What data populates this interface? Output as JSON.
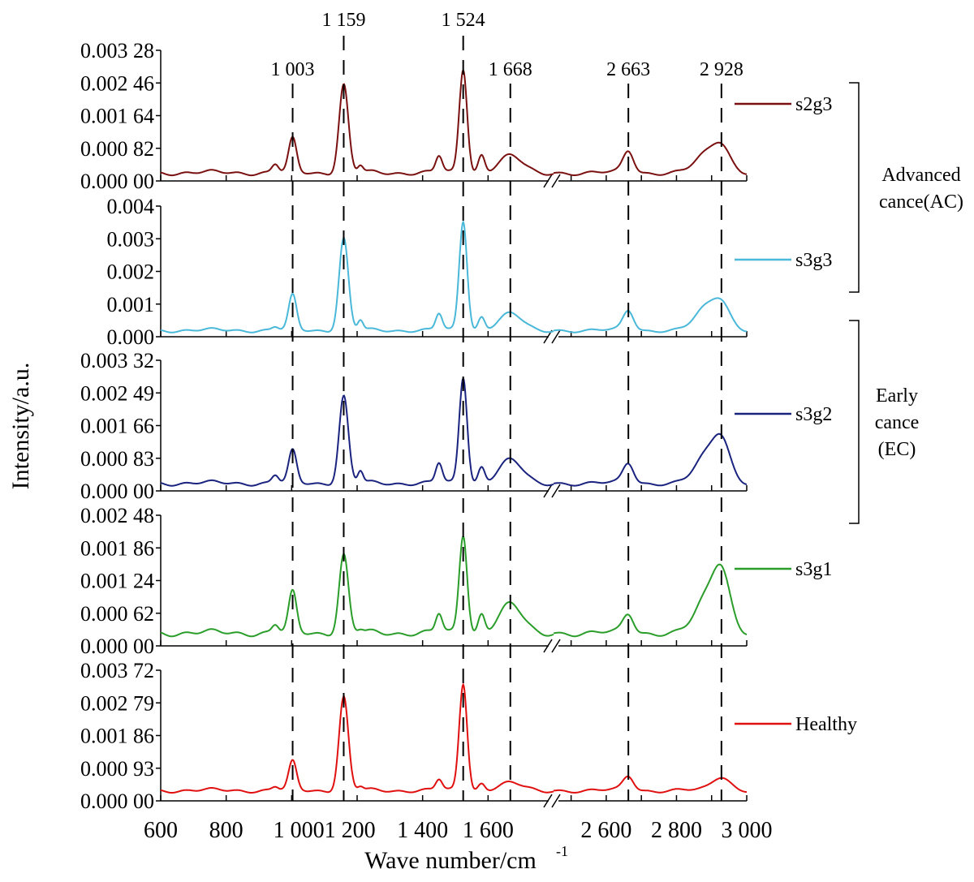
{
  "chart_data": {
    "type": "line",
    "xlabel": "Wave number/cm",
    "xlabel_superscript": "-1",
    "ylabel": "Intensity/a.u.",
    "x_axis": {
      "segments": [
        {
          "range": [
            600,
            1800
          ],
          "ticks": [
            600,
            800,
            1000,
            1200,
            1400,
            1600
          ]
        },
        {
          "range": [
            2450,
            3000
          ],
          "ticks": [
            2500,
            2600,
            2700,
            2800,
            2900,
            3000
          ]
        }
      ],
      "tick_labels": [
        {
          "text": "600",
          "value": 600
        },
        {
          "text": "800",
          "value": 800
        },
        {
          "text": "1 0001 200",
          "value": 1100
        },
        {
          "text": "1 400",
          "value": 1400
        },
        {
          "text": "1 600",
          "value": 1600
        },
        {
          "text": "2 600",
          "value": 2600
        },
        {
          "text": "2 800",
          "value": 2800
        },
        {
          "text": "3 000",
          "value": 3000
        }
      ],
      "break": true
    },
    "reference_lines": [
      {
        "value": 1003,
        "label": "1 003"
      },
      {
        "value": 1159,
        "label": "1 159"
      },
      {
        "value": 1524,
        "label": "1 524"
      },
      {
        "value": 1668,
        "label": "1 668"
      },
      {
        "value": 2663,
        "label": "2 663"
      },
      {
        "value": 2928,
        "label": "2 928"
      }
    ],
    "panels": [
      {
        "name": "s2g3",
        "color": "#7a1010",
        "ylim": [
          0,
          0.00328
        ],
        "yticks": [
          "0.000 00",
          "0.000 82",
          "0.001 64",
          "0.002 46",
          "0.003 28"
        ],
        "base": 0.00021,
        "peaks": [
          [
            1003,
            0.00104,
            12
          ],
          [
            1159,
            0.00241,
            14
          ],
          [
            1524,
            0.00282,
            12
          ],
          [
            1668,
            0.00062,
            35
          ],
          [
            1450,
            0.00062,
            10
          ],
          [
            1580,
            0.00065,
            10
          ],
          [
            950,
            0.00042,
            10
          ],
          [
            1210,
            0.00038,
            8
          ],
          [
            2663,
            0.00075,
            15
          ],
          [
            2928,
            0.00088,
            25
          ],
          [
            2880,
            0.0006,
            30
          ]
        ]
      },
      {
        "name": "s3g3",
        "color": "#4ab8d8",
        "ylim": [
          0,
          0.004
        ],
        "yticks": [
          "0.000",
          "0.001",
          "0.002",
          "0.003",
          "0.004"
        ],
        "base": 0.0002,
        "peaks": [
          [
            1003,
            0.00125,
            12
          ],
          [
            1159,
            0.003,
            14
          ],
          [
            1524,
            0.00355,
            12
          ],
          [
            1668,
            0.0007,
            35
          ],
          [
            1450,
            0.0007,
            10
          ],
          [
            1580,
            0.0006,
            10
          ],
          [
            950,
            0.0003,
            10
          ],
          [
            1210,
            0.0005,
            8
          ],
          [
            2663,
            0.0008,
            15
          ],
          [
            2928,
            0.00102,
            25
          ],
          [
            2880,
            0.0008,
            30
          ]
        ]
      },
      {
        "name": "s3g2",
        "color": "#1a237e",
        "ylim": [
          0,
          0.00332
        ],
        "yticks": [
          "0.000 00",
          "0.000 83",
          "0.001 66",
          "0.002 49",
          "0.003 32"
        ],
        "base": 0.0002,
        "peaks": [
          [
            1003,
            0.001,
            12
          ],
          [
            1159,
            0.0024,
            14
          ],
          [
            1524,
            0.0029,
            12
          ],
          [
            1668,
            0.00078,
            35
          ],
          [
            1450,
            0.0007,
            10
          ],
          [
            1580,
            0.0006,
            10
          ],
          [
            950,
            0.0004,
            10
          ],
          [
            1210,
            0.0005,
            8
          ],
          [
            2663,
            0.0007,
            15
          ],
          [
            2928,
            0.0013,
            25
          ],
          [
            2880,
            0.0008,
            30
          ]
        ]
      },
      {
        "name": "s3g1",
        "color": "#2a9d2a",
        "ylim": [
          0,
          0.00248
        ],
        "yticks": [
          "0.000 00",
          "0.000 62",
          "0.001 24",
          "0.001 86",
          "0.002 48"
        ],
        "base": 0.00025,
        "peaks": [
          [
            1003,
            0.001,
            12
          ],
          [
            1159,
            0.00172,
            14
          ],
          [
            1524,
            0.00212,
            12
          ],
          [
            1668,
            0.00078,
            35
          ],
          [
            1450,
            0.0006,
            10
          ],
          [
            1580,
            0.0006,
            10
          ],
          [
            950,
            0.0004,
            10
          ],
          [
            1210,
            0.0003,
            8
          ],
          [
            2663,
            0.0006,
            15
          ],
          [
            2928,
            0.00142,
            25
          ],
          [
            2880,
            0.0008,
            30
          ]
        ]
      },
      {
        "name": "Healthy",
        "color": "#e01010",
        "ylim": [
          0,
          0.00372
        ],
        "yticks": [
          "0.000 00",
          "0.000 93",
          "0.001 86",
          "0.002 79",
          "0.003 72"
        ],
        "base": 0.0003,
        "peaks": [
          [
            1003,
            0.0011,
            12
          ],
          [
            1159,
            0.00295,
            14
          ],
          [
            1524,
            0.00335,
            12
          ],
          [
            1668,
            0.0005,
            35
          ],
          [
            1450,
            0.0006,
            10
          ],
          [
            1580,
            0.0005,
            10
          ],
          [
            950,
            0.0004,
            10
          ],
          [
            1210,
            0.0004,
            8
          ],
          [
            2663,
            0.0007,
            15
          ],
          [
            2928,
            0.0007,
            25
          ]
        ]
      }
    ],
    "groups": [
      {
        "lines": [
          "Advanced",
          "cance(AC)"
        ],
        "panels": [
          "s2g3",
          "s3g3"
        ]
      },
      {
        "lines": [
          "Early",
          "cance",
          "(EC)"
        ],
        "panels": [
          "s3g2",
          "s3g1"
        ]
      }
    ]
  }
}
